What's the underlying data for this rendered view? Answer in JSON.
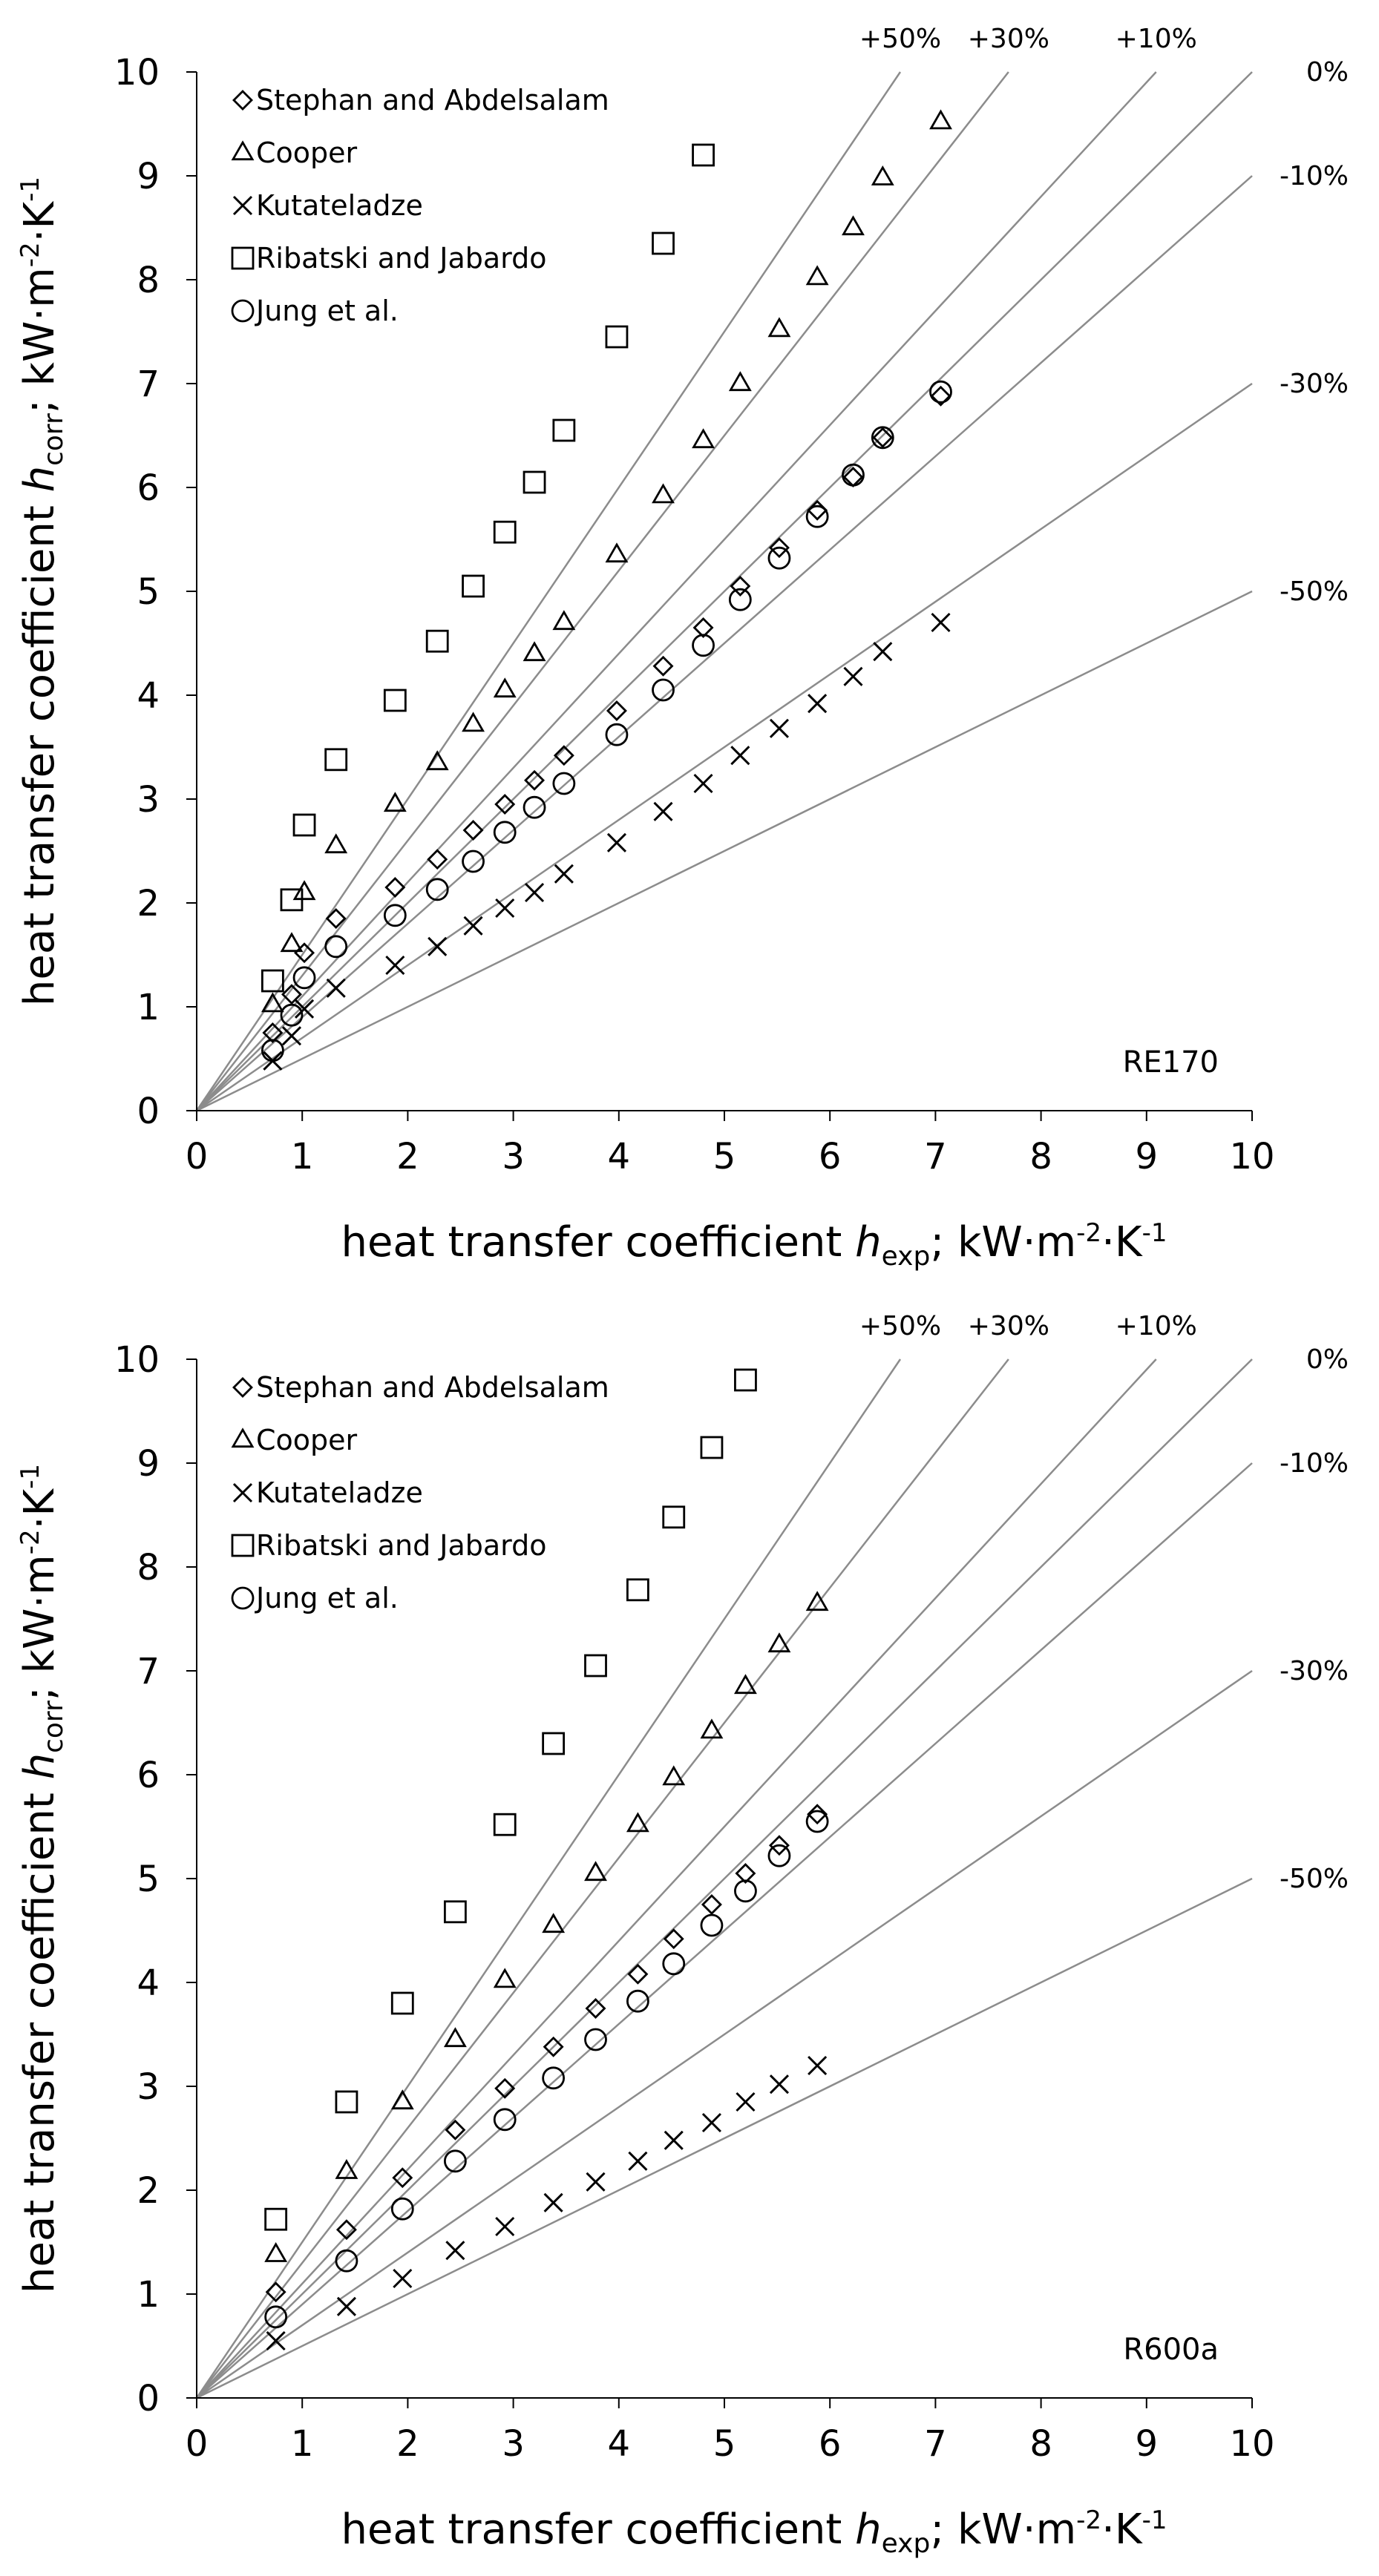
{
  "colors": {
    "background": "#ffffff",
    "reference_line": "#8c8c8c",
    "marker": "#000000",
    "text": "#000000"
  },
  "chart_data": [
    {
      "type": "scatter",
      "panel_id": "top",
      "panel_label": "RE170",
      "xlabel": {
        "prefix": "heat transfer coefficient ",
        "var": "h",
        "sub": "exp",
        "suffix": "; kW·m",
        "exp1": "-2",
        "mid": "·K",
        "exp2": "-1"
      },
      "ylabel": {
        "prefix": "heat transfer coefficient ",
        "var": "h",
        "sub": "corr",
        "suffix": "; kW·m",
        "exp1": "-2",
        "mid": "·K",
        "exp2": "-1"
      },
      "xlim": [
        0,
        10
      ],
      "ylim": [
        0,
        10
      ],
      "xticks": [
        "0",
        "1",
        "2",
        "3",
        "4",
        "5",
        "6",
        "7",
        "8",
        "9",
        "10"
      ],
      "yticks": [
        "0",
        "1",
        "2",
        "3",
        "4",
        "5",
        "6",
        "7",
        "8",
        "9",
        "10"
      ],
      "grid": false,
      "legend_position": "top-left",
      "reference_lines": [
        {
          "slope": 1.5,
          "label": "+50%"
        },
        {
          "slope": 1.3,
          "label": "+30%"
        },
        {
          "slope": 1.1,
          "label": "+10%"
        },
        {
          "slope": 1.0,
          "label": "0%"
        },
        {
          "slope": 0.9,
          "label": "-10%"
        },
        {
          "slope": 0.7,
          "label": "-30%"
        },
        {
          "slope": 0.5,
          "label": "-50%"
        }
      ],
      "series": [
        {
          "name": "Stephan and Abdelsalam",
          "marker": "diamond",
          "x": [
            0.72,
            0.9,
            1.02,
            1.32,
            1.88,
            2.28,
            2.62,
            2.92,
            3.2,
            3.48,
            3.98,
            4.42,
            4.8,
            5.15,
            5.52,
            5.88,
            6.22,
            6.5,
            7.05
          ],
          "y": [
            0.75,
            1.12,
            1.52,
            1.85,
            2.15,
            2.42,
            2.7,
            2.95,
            3.18,
            3.42,
            3.85,
            4.28,
            4.65,
            5.05,
            5.42,
            5.78,
            6.1,
            6.48,
            6.88
          ]
        },
        {
          "name": "Cooper",
          "marker": "triangle",
          "x": [
            0.72,
            0.9,
            1.02,
            1.32,
            1.88,
            2.28,
            2.62,
            2.92,
            3.2,
            3.48,
            3.98,
            4.42,
            4.8,
            5.15,
            5.52,
            5.88,
            6.22,
            6.5,
            7.05
          ],
          "y": [
            1.02,
            1.6,
            2.1,
            2.55,
            2.95,
            3.35,
            3.72,
            4.05,
            4.4,
            4.7,
            5.35,
            5.92,
            6.45,
            7.0,
            7.52,
            8.02,
            8.5,
            8.98,
            9.52
          ]
        },
        {
          "name": "Kutateladze",
          "marker": "cross",
          "x": [
            0.72,
            0.9,
            1.02,
            1.32,
            1.88,
            2.28,
            2.62,
            2.92,
            3.2,
            3.48,
            3.98,
            4.42,
            4.8,
            5.15,
            5.52,
            5.88,
            6.22,
            6.5,
            7.05
          ],
          "y": [
            0.48,
            0.72,
            0.98,
            1.18,
            1.4,
            1.58,
            1.78,
            1.95,
            2.1,
            2.28,
            2.58,
            2.88,
            3.15,
            3.42,
            3.68,
            3.92,
            4.18,
            4.42,
            4.7
          ]
        },
        {
          "name": "Ribatski and Jabardo",
          "marker": "square",
          "x": [
            0.72,
            0.9,
            1.02,
            1.32,
            1.88,
            2.28,
            2.62,
            2.92,
            3.2,
            3.48,
            3.98,
            4.42,
            4.8
          ],
          "y": [
            1.25,
            2.03,
            2.75,
            3.38,
            3.95,
            4.52,
            5.05,
            5.57,
            6.05,
            6.55,
            7.45,
            8.35,
            9.2
          ]
        },
        {
          "name": "Jung et al.",
          "marker": "circle",
          "x": [
            0.72,
            0.9,
            1.02,
            1.32,
            1.88,
            2.28,
            2.62,
            2.92,
            3.2,
            3.48,
            3.98,
            4.42,
            4.8,
            5.15,
            5.52,
            5.88,
            6.22,
            6.5,
            7.05
          ],
          "y": [
            0.58,
            0.92,
            1.28,
            1.58,
            1.88,
            2.13,
            2.4,
            2.68,
            2.92,
            3.15,
            3.62,
            4.05,
            4.48,
            4.92,
            5.32,
            5.72,
            6.12,
            6.48,
            6.92
          ]
        }
      ]
    },
    {
      "type": "scatter",
      "panel_id": "bottom",
      "panel_label": "R600a",
      "xlabel": {
        "prefix": "heat transfer coefficient ",
        "var": "h",
        "sub": "exp",
        "suffix": "; kW·m",
        "exp1": "-2",
        "mid": "·K",
        "exp2": "-1"
      },
      "ylabel": {
        "prefix": "heat transfer coefficient ",
        "var": "h",
        "sub": "corr",
        "suffix": "; kW·m",
        "exp1": "-2",
        "mid": "·K",
        "exp2": "-1"
      },
      "xlim": [
        0,
        10
      ],
      "ylim": [
        0,
        10
      ],
      "xticks": [
        "0",
        "1",
        "2",
        "3",
        "4",
        "5",
        "6",
        "7",
        "8",
        "9",
        "10"
      ],
      "yticks": [
        "0",
        "1",
        "2",
        "3",
        "4",
        "5",
        "6",
        "7",
        "8",
        "9",
        "10"
      ],
      "grid": false,
      "legend_position": "top-left",
      "reference_lines": [
        {
          "slope": 1.5,
          "label": "+50%"
        },
        {
          "slope": 1.3,
          "label": "+30%"
        },
        {
          "slope": 1.1,
          "label": "+10%"
        },
        {
          "slope": 1.0,
          "label": "0%"
        },
        {
          "slope": 0.9,
          "label": "-10%"
        },
        {
          "slope": 0.7,
          "label": "-30%"
        },
        {
          "slope": 0.5,
          "label": "-50%"
        }
      ],
      "series": [
        {
          "name": "Stephan and Abdelsalam",
          "marker": "diamond",
          "x": [
            0.75,
            1.42,
            1.95,
            2.45,
            2.92,
            3.38,
            3.78,
            4.18,
            4.52,
            4.88,
            5.2,
            5.52,
            5.88
          ],
          "y": [
            1.02,
            1.62,
            2.12,
            2.58,
            2.98,
            3.38,
            3.75,
            4.08,
            4.42,
            4.75,
            5.05,
            5.32,
            5.62
          ]
        },
        {
          "name": "Cooper",
          "marker": "triangle",
          "x": [
            0.75,
            1.42,
            1.95,
            2.45,
            2.92,
            3.38,
            3.78,
            4.18,
            4.52,
            4.88,
            5.2,
            5.52,
            5.88
          ],
          "y": [
            1.38,
            2.18,
            2.85,
            3.45,
            4.02,
            4.55,
            5.05,
            5.52,
            5.97,
            6.42,
            6.85,
            7.25,
            7.65
          ]
        },
        {
          "name": "Kutateladze",
          "marker": "cross",
          "x": [
            0.75,
            1.42,
            1.95,
            2.45,
            2.92,
            3.38,
            3.78,
            4.18,
            4.52,
            4.88,
            5.2,
            5.52,
            5.88
          ],
          "y": [
            0.55,
            0.88,
            1.15,
            1.42,
            1.65,
            1.88,
            2.08,
            2.28,
            2.48,
            2.65,
            2.85,
            3.02,
            3.2
          ]
        },
        {
          "name": "Ribatski and Jabardo",
          "marker": "square",
          "x": [
            0.75,
            1.42,
            1.95,
            2.45,
            2.92,
            3.38,
            3.78,
            4.18,
            4.52,
            4.88,
            5.2
          ],
          "y": [
            1.72,
            2.85,
            3.8,
            4.68,
            5.52,
            6.3,
            7.05,
            7.78,
            8.48,
            9.15,
            9.8
          ]
        },
        {
          "name": "Jung et al.",
          "marker": "circle",
          "x": [
            0.75,
            1.42,
            1.95,
            2.45,
            2.92,
            3.38,
            3.78,
            4.18,
            4.52,
            4.88,
            5.2,
            5.52,
            5.88
          ],
          "y": [
            0.78,
            1.32,
            1.82,
            2.28,
            2.68,
            3.08,
            3.45,
            3.82,
            4.18,
            4.55,
            4.88,
            5.22,
            5.55
          ]
        }
      ]
    }
  ]
}
